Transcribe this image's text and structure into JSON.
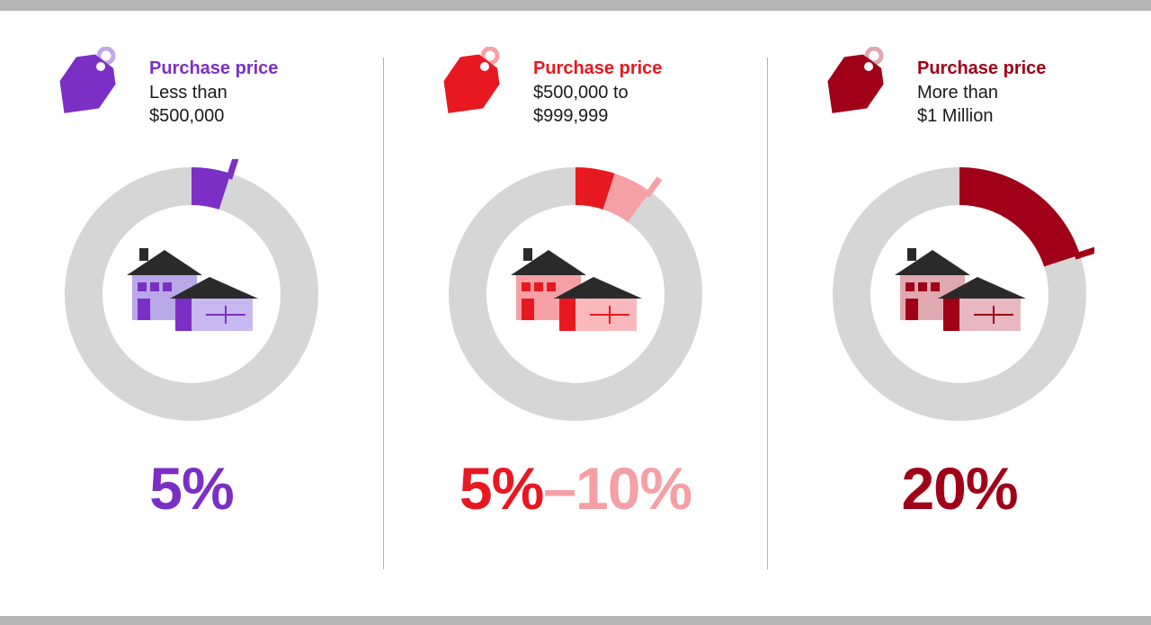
{
  "background_color": "#ffffff",
  "bar_color": "#b5b5b5",
  "divider_color": "#b5b5b5",
  "ring_track_color": "#d6d6d6",
  "ring_thickness": 42,
  "ring_radius": 120,
  "panels": [
    {
      "title": "Purchase price",
      "subtitle": "Less than\n$500,000",
      "title_color": "#7b2fc4",
      "tag_fill": "#7b2fc4",
      "tag_ring": "#c0a8e8",
      "segments": [
        {
          "pct": 5,
          "color": "#7b2fc4"
        }
      ],
      "house_body": "#b8a8e8",
      "house_body2": "#c8b8f0",
      "house_accent": "#7b2fc4",
      "house_roof": "#2a2a2a",
      "percentage_parts": [
        {
          "text": "5%",
          "color": "#7b2fc4"
        }
      ]
    },
    {
      "title": "Purchase price",
      "subtitle": "$500,000 to\n$999,999",
      "title_color": "#e81820",
      "tag_fill": "#e81820",
      "tag_ring": "#f5a0a5",
      "segments": [
        {
          "pct": 5,
          "color": "#e81820"
        },
        {
          "pct": 5,
          "color": "#f5a0a5"
        }
      ],
      "house_body": "#f5a0a5",
      "house_body2": "#f8b8bc",
      "house_accent": "#e81820",
      "house_roof": "#2a2a2a",
      "percentage_parts": [
        {
          "text": "5%",
          "color": "#e81820"
        },
        {
          "text": "–",
          "color": "#f5a0a5"
        },
        {
          "text": "10%",
          "color": "#f5a0a5"
        }
      ]
    },
    {
      "title": "Purchase price",
      "subtitle": "More than\n$1 Million",
      "title_color": "#a00018",
      "tag_fill": "#a00018",
      "tag_ring": "#e0a8b0",
      "segments": [
        {
          "pct": 20,
          "color": "#a00018"
        }
      ],
      "house_body": "#e0a8b0",
      "house_body2": "#e8b8c0",
      "house_accent": "#a00018",
      "house_roof": "#2a2a2a",
      "percentage_parts": [
        {
          "text": "20%",
          "color": "#a00018"
        }
      ]
    }
  ]
}
